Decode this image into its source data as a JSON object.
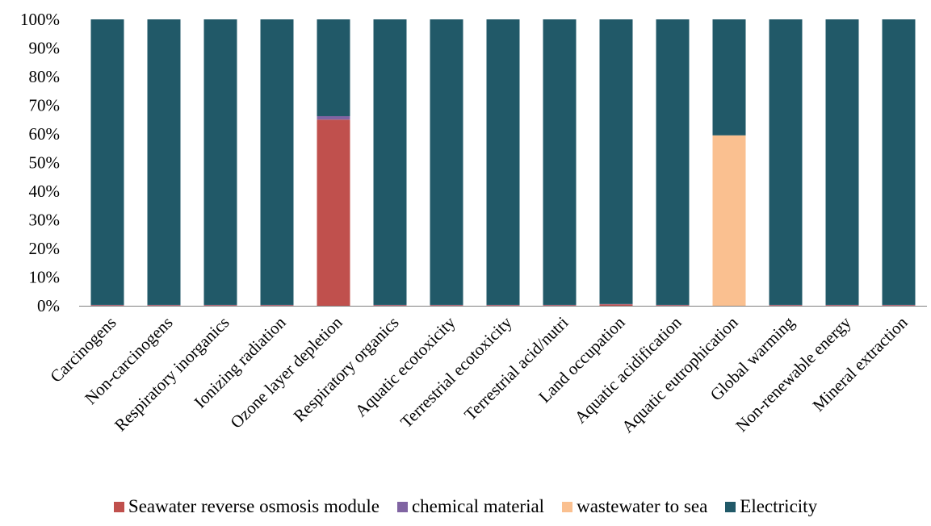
{
  "chart_data": {
    "type": "bar",
    "stacked": true,
    "categories": [
      "Carcinogens",
      "Non-carcinogens",
      "Respiratory inorganics",
      "Ionizing radiation",
      "Ozone layer depletion",
      "Respiratory organics",
      "Aquatic ecotoxicity",
      "Terrestrial ecotoxicity",
      "Terrestrial acid/nutri",
      "Land occupation",
      "Aquatic acidification",
      "Aquatic eutrophication",
      "Global warming",
      "Non-renewable energy",
      "Mineral extraction"
    ],
    "series": [
      {
        "name": "Seawater reverse osmosis module",
        "color": "#c0504d",
        "values": [
          0.2,
          0.2,
          0.2,
          0.2,
          65,
          0.2,
          0.2,
          0.2,
          0.2,
          0.5,
          0.2,
          0,
          0.2,
          0.2,
          0.2
        ]
      },
      {
        "name": "chemical material",
        "color": "#8064a2",
        "values": [
          0.1,
          0.1,
          0.1,
          0.1,
          1.2,
          0.1,
          0.1,
          0.1,
          0.1,
          0.1,
          0.1,
          0,
          0.1,
          0.1,
          0.1
        ]
      },
      {
        "name": "wastewater to sea",
        "color": "#fac090",
        "values": [
          0,
          0,
          0,
          0,
          0,
          0,
          0,
          0,
          0,
          0,
          0,
          59.5,
          0,
          0,
          0
        ]
      },
      {
        "name": "Electricity",
        "color": "#215968",
        "values": [
          99.7,
          99.7,
          99.7,
          99.7,
          33.8,
          99.7,
          99.7,
          99.7,
          99.7,
          99.4,
          99.7,
          40.5,
          99.7,
          99.7,
          99.7
        ]
      }
    ],
    "y_ticks": [
      "0%",
      "10%",
      "20%",
      "30%",
      "40%",
      "50%",
      "60%",
      "70%",
      "80%",
      "90%",
      "100%"
    ],
    "ylim": [
      0,
      100
    ],
    "grid": false,
    "legend_position": "bottom"
  }
}
